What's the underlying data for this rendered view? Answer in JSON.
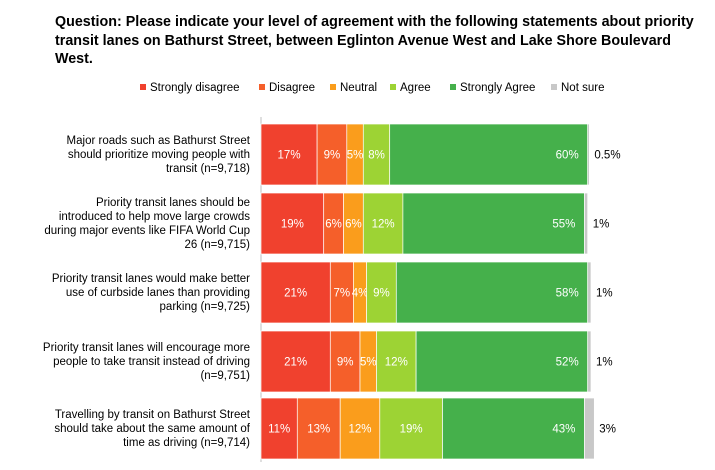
{
  "chart_data": {
    "type": "bar",
    "orientation": "horizontal",
    "stacked": true,
    "title": "Question: Please indicate your level of agreement with the following statements about priority transit lanes on Bathurst Street, between Eglinton Avenue West and Lake Shore Boulevard West.",
    "xlabel": "",
    "ylabel": "",
    "xlim": [
      0,
      100
    ],
    "legend_position": "top",
    "categories": [
      "Major roads such as Bathurst Street should prioritize moving people with transit (n=9,718)",
      "Priority transit lanes should be introduced to help move large crowds during major events like FIFA World Cup 26 (n=9,715)",
      "Priority transit lanes would make better use of curbside lanes than providing parking (n=9,725)",
      "Priority transit lanes will encourage more people to take transit instead of driving (n=9,751)",
      "Travelling by transit on Bathurst Street should take about the same amount of time as driving (n=9,714)"
    ],
    "series": [
      {
        "name": "Strongly disagree",
        "color": "#f0412e",
        "values": [
          17,
          19,
          21,
          21,
          11
        ],
        "labels": [
          "17%",
          "19%",
          "21%",
          "21%",
          "11%"
        ]
      },
      {
        "name": "Disagree",
        "color": "#f55f2a",
        "values": [
          9,
          6,
          7,
          9,
          13
        ],
        "labels": [
          "9%",
          "6%",
          "7%",
          "9%",
          "13%"
        ]
      },
      {
        "name": "Neutral",
        "color": "#fa9d1c",
        "values": [
          5,
          6,
          4,
          5,
          12
        ],
        "labels": [
          "5%",
          "6%",
          "4%",
          "5%",
          "12%"
        ]
      },
      {
        "name": "Agree",
        "color": "#9dd334",
        "values": [
          8,
          12,
          9,
          12,
          19
        ],
        "labels": [
          "8%",
          "12%",
          "9%",
          "12%",
          "19%"
        ]
      },
      {
        "name": "Strongly Agree",
        "color": "#45b04b",
        "values": [
          60,
          55,
          58,
          52,
          43
        ],
        "labels": [
          "60%",
          "55%",
          "58%",
          "52%",
          "43%"
        ]
      },
      {
        "name": "Not sure",
        "color": "#c8c8c8",
        "values": [
          0.5,
          1,
          1,
          1,
          3
        ],
        "labels": [
          "0.5%",
          "1%",
          "1%",
          "1%",
          "3%"
        ]
      }
    ]
  }
}
